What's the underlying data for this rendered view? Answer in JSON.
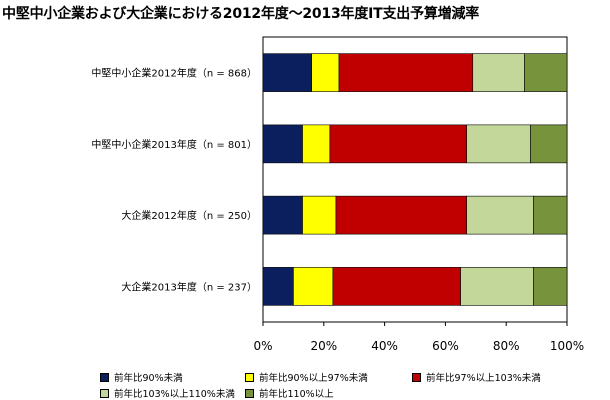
{
  "title": "中堅中小企業および大企業における2012年度～2013年度IT支出予算増減率",
  "chart_data": {
    "type": "bar",
    "orientation": "horizontal",
    "stacked": "percent",
    "categories": [
      "中堅中小企業2012年度（n = 868）",
      "中堅中小企業2013年度（n = 801）",
      "大企業2012年度（n = 250）",
      "大企業2013年度（n = 237）"
    ],
    "series": [
      {
        "name": "前年比90%未満",
        "color": "#0b1f5f",
        "values": [
          16,
          13,
          13,
          10
        ]
      },
      {
        "name": "前年比90%以上97%未満",
        "color": "#ffff00",
        "values": [
          9,
          9,
          11,
          13
        ]
      },
      {
        "name": "前年比97%以上103%未満",
        "color": "#c00000",
        "values": [
          44,
          45,
          43,
          42
        ]
      },
      {
        "name": "前年比103%以上110%未満",
        "color": "#c4d79b",
        "values": [
          17,
          21,
          22,
          24
        ]
      },
      {
        "name": "前年比110%以上",
        "color": "#77933c",
        "values": [
          14,
          12,
          11,
          11
        ]
      }
    ],
    "xlim": [
      0,
      100
    ],
    "xticks": [
      "0%",
      "20%",
      "40%",
      "60%",
      "80%",
      "100%"
    ],
    "grid": false,
    "legend_position": "bottom"
  }
}
